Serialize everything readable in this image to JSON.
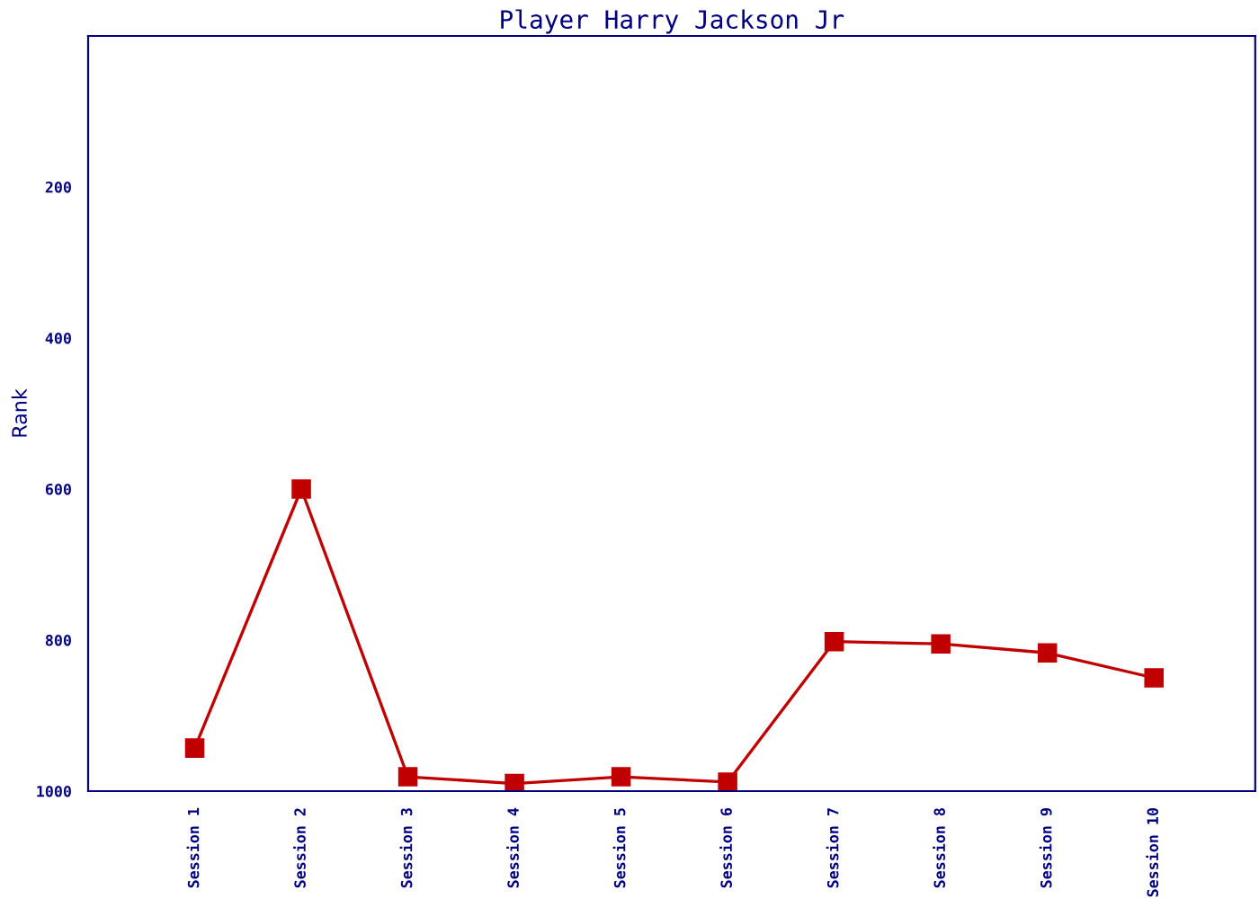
{
  "chart_data": {
    "type": "line",
    "title": "Player Harry Jackson Jr",
    "ylabel": "Rank",
    "categories": [
      "Session 1",
      "Session 2",
      "Session 3",
      "Session 4",
      "Session 5",
      "Session 6",
      "Session 7",
      "Session 8",
      "Session 9",
      "Session 10"
    ],
    "series": [
      {
        "color": "#c00000",
        "values": [
          943,
          600,
          981,
          990,
          981,
          988,
          802,
          805,
          817,
          850
        ]
      }
    ],
    "ylim": [
      1000,
      0
    ],
    "yticks": [
      200,
      400,
      600,
      800,
      1000
    ],
    "grid": false,
    "marker": "square",
    "line_style": "solid",
    "legend": false
  }
}
